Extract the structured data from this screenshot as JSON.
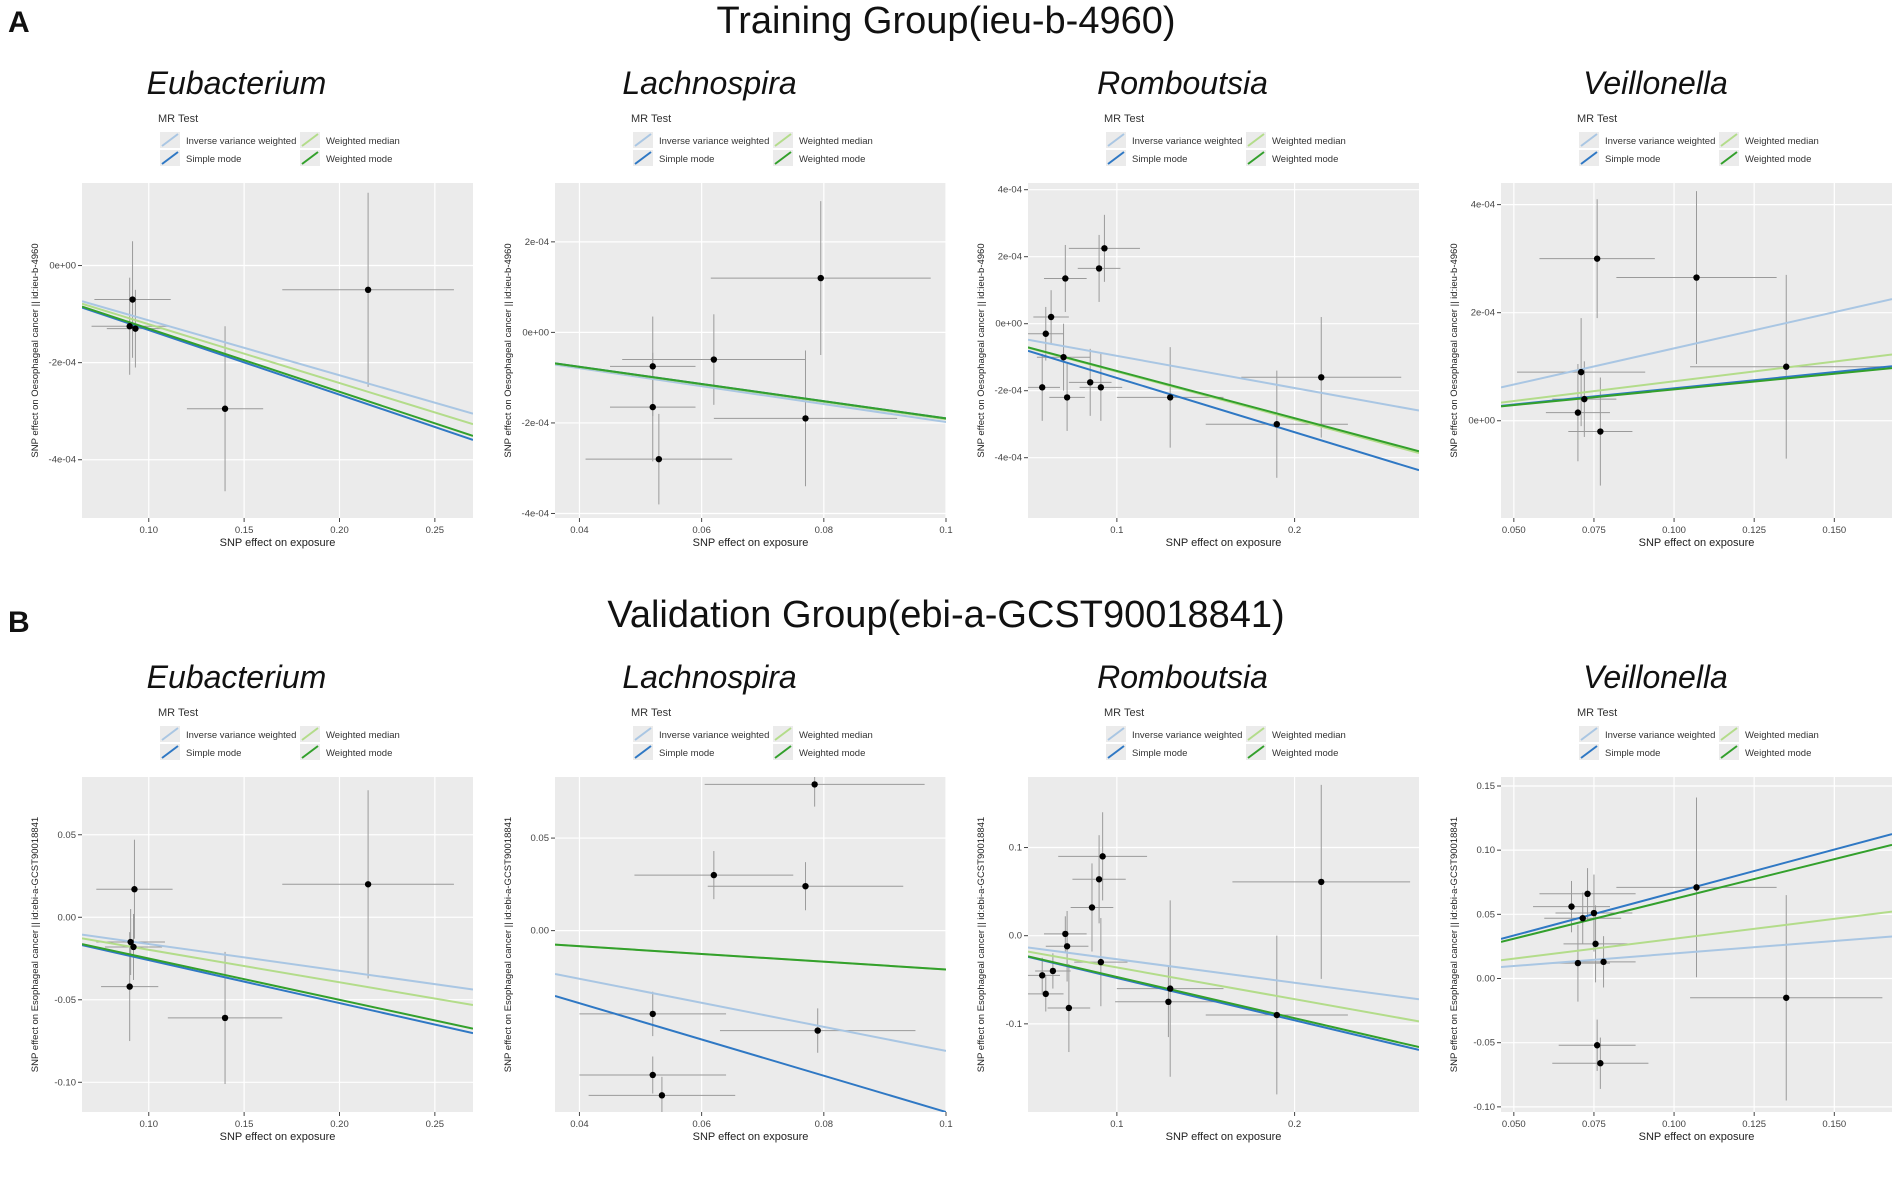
{
  "figure": {
    "panel_a_letter": "A",
    "panel_b_letter": "B",
    "training_title": "Training Group(ieu-b-4960)",
    "validation_title": "Validation Group(ebi-a-GCST90018841)"
  },
  "legend": {
    "title": "MR Test",
    "entries": [
      {
        "name": "Inverse variance weighted",
        "color": "#a9c6e3"
      },
      {
        "name": "Weighted median",
        "color": "#b3dc8a"
      },
      {
        "name": "Simple mode",
        "color": "#2f78c4"
      },
      {
        "name": "Weighted mode",
        "color": "#33a02c"
      }
    ]
  },
  "chart_data": [
    {
      "type": "scatter",
      "group": "training",
      "title": "Eubacterium",
      "xlabel": "SNP effect on exposure",
      "ylabel": "SNP effect on Oesophageal cancer || id:ieu-b-4960",
      "xlim": [
        0.065,
        0.27
      ],
      "ylim": [
        -0.00052,
        0.00017
      ],
      "xticks": [
        0.1,
        0.15,
        0.2,
        0.25
      ],
      "xtick_labels": [
        "0.10",
        "0.15",
        "0.20",
        "0.25"
      ],
      "yticks": [
        0,
        -0.0002,
        -0.0004
      ],
      "ytick_labels": [
        "0e+00",
        "-2e-04",
        "-4e-04"
      ],
      "points": [
        {
          "x": 0.0915,
          "y": -7e-05,
          "xerr": 0.02,
          "yerr": 0.00012
        },
        {
          "x": 0.09,
          "y": -0.000125,
          "xerr": 0.02,
          "yerr": 0.0001
        },
        {
          "x": 0.093,
          "y": -0.00013,
          "xerr": 0.015,
          "yerr": 8e-05
        },
        {
          "x": 0.14,
          "y": -0.000295,
          "xerr": 0.02,
          "yerr": 0.00017
        },
        {
          "x": 0.215,
          "y": -5e-05,
          "xerr": 0.045,
          "yerr": 0.0002
        }
      ],
      "lines": [
        {
          "method": "Inverse variance weighted",
          "slope": -0.00113
        },
        {
          "method": "Weighted median",
          "slope": -0.00121
        },
        {
          "method": "Simple mode",
          "slope": -0.00133
        },
        {
          "method": "Weighted mode",
          "slope": -0.0013
        }
      ]
    },
    {
      "type": "scatter",
      "group": "training",
      "title": "Lachnospira",
      "xlabel": "SNP effect on exposure",
      "ylabel": "SNP effect on Oesophageal cancer || id:ieu-b-4960",
      "xlim": [
        0.036,
        0.1
      ],
      "ylim": [
        -0.00041,
        0.00033
      ],
      "xticks": [
        0.04,
        0.06,
        0.08,
        0.1
      ],
      "xtick_labels": [
        "0.04",
        "0.06",
        "0.08",
        "0.1"
      ],
      "yticks": [
        0.0002,
        0,
        -0.0002,
        -0.0004
      ],
      "ytick_labels": [
        "2e-04",
        "0e+00",
        "-2e-04",
        "-4e-04"
      ],
      "points": [
        {
          "x": 0.052,
          "y": -7.5e-05,
          "xerr": 0.007,
          "yerr": 0.00011
        },
        {
          "x": 0.052,
          "y": -0.000165,
          "xerr": 0.007,
          "yerr": 0.00012
        },
        {
          "x": 0.053,
          "y": -0.00028,
          "xerr": 0.012,
          "yerr": 0.0001
        },
        {
          "x": 0.062,
          "y": -6e-05,
          "xerr": 0.015,
          "yerr": 0.0001
        },
        {
          "x": 0.077,
          "y": -0.00019,
          "xerr": 0.015,
          "yerr": 0.00015
        },
        {
          "x": 0.0795,
          "y": 0.00012,
          "xerr": 0.018,
          "yerr": 0.00017
        }
      ],
      "lines": [
        {
          "method": "Inverse variance weighted",
          "slope": -0.00198
        },
        {
          "method": "Weighted median",
          "slope": -0.00192
        },
        {
          "method": "Simple mode",
          "slope": -0.0019
        },
        {
          "method": "Weighted mode",
          "slope": -0.0019
        }
      ]
    },
    {
      "type": "scatter",
      "group": "training",
      "title": "Romboutsia",
      "xlabel": "SNP effect on exposure",
      "ylabel": "SNP effect on Oesophageal cancer || id:ieu-b-4960",
      "xlim": [
        0.05,
        0.27
      ],
      "ylim": [
        -0.00058,
        0.00042
      ],
      "xticks": [
        0.1,
        0.2
      ],
      "xtick_labels": [
        "0.1",
        "0.2"
      ],
      "yticks": [
        0.0004,
        0.0002,
        0,
        -0.0002,
        -0.0004
      ],
      "ytick_labels": [
        "4e-04",
        "2e-04",
        "0e+00",
        "-2e-04",
        "-4e-04"
      ],
      "points": [
        {
          "x": 0.058,
          "y": -0.00019,
          "xerr": 0.01,
          "yerr": 0.0001
        },
        {
          "x": 0.06,
          "y": -3e-05,
          "xerr": 0.01,
          "yerr": 8e-05
        },
        {
          "x": 0.063,
          "y": 2e-05,
          "xerr": 0.01,
          "yerr": 8e-05
        },
        {
          "x": 0.07,
          "y": -0.0001,
          "xerr": 0.015,
          "yerr": 0.0001
        },
        {
          "x": 0.071,
          "y": 0.000135,
          "xerr": 0.012,
          "yerr": 0.0001
        },
        {
          "x": 0.072,
          "y": -0.00022,
          "xerr": 0.01,
          "yerr": 0.0001
        },
        {
          "x": 0.085,
          "y": -0.000175,
          "xerr": 0.012,
          "yerr": 0.0001
        },
        {
          "x": 0.09,
          "y": 0.000165,
          "xerr": 0.012,
          "yerr": 0.0001
        },
        {
          "x": 0.091,
          "y": -0.00019,
          "xerr": 0.012,
          "yerr": 0.0001
        },
        {
          "x": 0.093,
          "y": 0.000225,
          "xerr": 0.02,
          "yerr": 0.0001
        },
        {
          "x": 0.13,
          "y": -0.00022,
          "xerr": 0.03,
          "yerr": 0.00015
        },
        {
          "x": 0.19,
          "y": -0.0003,
          "xerr": 0.04,
          "yerr": 0.00016
        },
        {
          "x": 0.215,
          "y": -0.00016,
          "xerr": 0.045,
          "yerr": 0.00018
        }
      ],
      "lines": [
        {
          "method": "Inverse variance weighted",
          "slope": -0.00096
        },
        {
          "method": "Weighted median",
          "slope": -0.00143
        },
        {
          "method": "Simple mode",
          "slope": -0.00162
        },
        {
          "method": "Weighted mode",
          "slope": -0.00141
        }
      ]
    },
    {
      "type": "scatter",
      "group": "training",
      "title": "Veillonella",
      "xlabel": "SNP effect on exposure",
      "ylabel": "SNP effect on Oesophageal cancer || id:ieu-b-4960",
      "xlim": [
        0.046,
        0.168
      ],
      "ylim": [
        -0.00018,
        0.00044
      ],
      "xticks": [
        0.05,
        0.075,
        0.1,
        0.125,
        0.15
      ],
      "xtick_labels": [
        "0.050",
        "0.075",
        "0.100",
        "0.125",
        "0.150"
      ],
      "yticks": [
        0.0004,
        0.0002,
        0
      ],
      "ytick_labels": [
        "4e-04",
        "2e-04",
        "0e+00"
      ],
      "points": [
        {
          "x": 0.07,
          "y": 1.5e-05,
          "xerr": 0.01,
          "yerr": 9e-05
        },
        {
          "x": 0.071,
          "y": 9e-05,
          "xerr": 0.02,
          "yerr": 0.0001
        },
        {
          "x": 0.072,
          "y": 4e-05,
          "xerr": 0.01,
          "yerr": 7e-05
        },
        {
          "x": 0.076,
          "y": 0.0003,
          "xerr": 0.018,
          "yerr": 0.00011
        },
        {
          "x": 0.077,
          "y": -2e-05,
          "xerr": 0.01,
          "yerr": 0.0001
        },
        {
          "x": 0.107,
          "y": 0.000265,
          "xerr": 0.025,
          "yerr": 0.00016
        },
        {
          "x": 0.135,
          "y": 0.0001,
          "xerr": 0.03,
          "yerr": 0.00017
        }
      ],
      "lines": [
        {
          "method": "Inverse variance weighted",
          "slope": 0.00134
        },
        {
          "method": "Weighted median",
          "slope": 0.00073
        },
        {
          "method": "Simple mode",
          "slope": 0.0006
        },
        {
          "method": "Weighted mode",
          "slope": 0.00058
        }
      ]
    },
    {
      "type": "scatter",
      "group": "validation",
      "title": "Eubacterium",
      "xlabel": "SNP effect on exposure",
      "ylabel": "SNP effect on Esophageal cancer || id:ebi-a-GCST90018841",
      "xlim": [
        0.065,
        0.27
      ],
      "ylim": [
        -0.118,
        0.085
      ],
      "xticks": [
        0.1,
        0.15,
        0.2,
        0.25
      ],
      "xtick_labels": [
        "0.10",
        "0.15",
        "0.20",
        "0.25"
      ],
      "yticks": [
        0.05,
        0,
        -0.05,
        -0.1
      ],
      "ytick_labels": [
        "0.05",
        "0.00",
        "-0.05",
        "-0.10"
      ],
      "points": [
        {
          "x": 0.09,
          "y": -0.042,
          "xerr": 0.015,
          "yerr": 0.033
        },
        {
          "x": 0.0905,
          "y": -0.015,
          "xerr": 0.018,
          "yerr": 0.02
        },
        {
          "x": 0.092,
          "y": -0.018,
          "xerr": 0.015,
          "yerr": 0.02
        },
        {
          "x": 0.0925,
          "y": 0.017,
          "xerr": 0.02,
          "yerr": 0.03
        },
        {
          "x": 0.14,
          "y": -0.061,
          "xerr": 0.03,
          "yerr": 0.04
        },
        {
          "x": 0.215,
          "y": 0.02,
          "xerr": 0.045,
          "yerr": 0.057
        }
      ],
      "lines": [
        {
          "method": "Inverse variance weighted",
          "slope": -0.162
        },
        {
          "method": "Weighted median",
          "slope": -0.197
        },
        {
          "method": "Simple mode",
          "slope": -0.26
        },
        {
          "method": "Weighted mode",
          "slope": -0.25
        }
      ]
    },
    {
      "type": "scatter",
      "group": "validation",
      "title": "Lachnospira",
      "xlabel": "SNP effect on exposure",
      "ylabel": "SNP effect on Esophageal cancer || id:ebi-a-GCST90018841",
      "xlim": [
        0.036,
        0.1
      ],
      "ylim": [
        -0.098,
        0.083
      ],
      "xticks": [
        0.04,
        0.06,
        0.08,
        0.1
      ],
      "xtick_labels": [
        "0.04",
        "0.06",
        "0.08",
        "0.1"
      ],
      "yticks": [
        0.05,
        0
      ],
      "ytick_labels": [
        "0.05",
        "0.00"
      ],
      "points": [
        {
          "x": 0.052,
          "y": -0.045,
          "xerr": 0.012,
          "yerr": 0.012
        },
        {
          "x": 0.052,
          "y": -0.078,
          "xerr": 0.012,
          "yerr": 0.01
        },
        {
          "x": 0.0535,
          "y": -0.089,
          "xerr": 0.012,
          "yerr": 0.01
        },
        {
          "x": 0.062,
          "y": 0.03,
          "xerr": 0.013,
          "yerr": 0.013
        },
        {
          "x": 0.077,
          "y": 0.024,
          "xerr": 0.016,
          "yerr": 0.013
        },
        {
          "x": 0.079,
          "y": -0.054,
          "xerr": 0.016,
          "yerr": 0.012
        },
        {
          "x": 0.0785,
          "y": 0.079,
          "xerr": 0.018,
          "yerr": 0.012
        }
      ],
      "lines": [
        {
          "method": "Inverse variance weighted",
          "slope": -0.65
        },
        {
          "method": "Weighted median",
          "slope": -0.21
        },
        {
          "method": "Simple mode",
          "slope": -0.98
        },
        {
          "method": "Weighted mode",
          "slope": -0.21
        }
      ]
    },
    {
      "type": "scatter",
      "group": "validation",
      "title": "Romboutsia",
      "xlabel": "SNP effect on exposure",
      "ylabel": "SNP effect on Esophageal cancer || id:ebi-a-GCST90018841",
      "xlim": [
        0.05,
        0.27
      ],
      "ylim": [
        -0.2,
        0.18
      ],
      "xticks": [
        0.1,
        0.2
      ],
      "xtick_labels": [
        "0.1",
        "0.2"
      ],
      "yticks": [
        0.1,
        0,
        -0.1
      ],
      "ytick_labels": [
        "0.1",
        "0.0",
        "-0.1"
      ],
      "points": [
        {
          "x": 0.058,
          "y": -0.045,
          "xerr": 0.01,
          "yerr": 0.02
        },
        {
          "x": 0.06,
          "y": -0.066,
          "xerr": 0.01,
          "yerr": 0.02
        },
        {
          "x": 0.064,
          "y": -0.04,
          "xerr": 0.01,
          "yerr": 0.02
        },
        {
          "x": 0.071,
          "y": 0.002,
          "xerr": 0.012,
          "yerr": 0.02
        },
        {
          "x": 0.072,
          "y": -0.012,
          "xerr": 0.012,
          "yerr": 0.04
        },
        {
          "x": 0.073,
          "y": -0.082,
          "xerr": 0.012,
          "yerr": 0.05
        },
        {
          "x": 0.086,
          "y": 0.032,
          "xerr": 0.012,
          "yerr": 0.05
        },
        {
          "x": 0.09,
          "y": 0.064,
          "xerr": 0.015,
          "yerr": 0.05
        },
        {
          "x": 0.091,
          "y": -0.03,
          "xerr": 0.015,
          "yerr": 0.05
        },
        {
          "x": 0.092,
          "y": 0.09,
          "xerr": 0.025,
          "yerr": 0.05
        },
        {
          "x": 0.13,
          "y": -0.06,
          "xerr": 0.03,
          "yerr": 0.1
        },
        {
          "x": 0.129,
          "y": -0.075,
          "xerr": 0.03,
          "yerr": 0.04
        },
        {
          "x": 0.19,
          "y": -0.09,
          "xerr": 0.04,
          "yerr": 0.09
        },
        {
          "x": 0.215,
          "y": 0.061,
          "xerr": 0.05,
          "yerr": 0.11
        }
      ],
      "lines": [
        {
          "method": "Inverse variance weighted",
          "slope": -0.267
        },
        {
          "method": "Weighted median",
          "slope": -0.36
        },
        {
          "method": "Simple mode",
          "slope": -0.48
        },
        {
          "method": "Weighted mode",
          "slope": -0.468
        }
      ]
    },
    {
      "type": "scatter",
      "group": "validation",
      "title": "Veillonella",
      "xlabel": "SNP effect on exposure",
      "ylabel": "SNP effect on Esophageal cancer || id:ebi-a-GCST90018841",
      "xlim": [
        0.046,
        0.168
      ],
      "ylim": [
        -0.104,
        0.157
      ],
      "xticks": [
        0.05,
        0.075,
        0.1,
        0.125,
        0.15
      ],
      "xtick_labels": [
        "0.050",
        "0.075",
        "0.100",
        "0.125",
        "0.150"
      ],
      "yticks": [
        0.15,
        0.1,
        0.05,
        0,
        -0.05,
        -0.1
      ],
      "ytick_labels": [
        "0.15",
        "0.10",
        "0.05",
        "0.00",
        "-0.05",
        "-0.10"
      ],
      "points": [
        {
          "x": 0.068,
          "y": 0.056,
          "xerr": 0.012,
          "yerr": 0.02
        },
        {
          "x": 0.07,
          "y": 0.012,
          "xerr": 0.01,
          "yerr": 0.03
        },
        {
          "x": 0.0715,
          "y": 0.047,
          "xerr": 0.012,
          "yerr": 0.02
        },
        {
          "x": 0.073,
          "y": 0.066,
          "xerr": 0.015,
          "yerr": 0.02
        },
        {
          "x": 0.075,
          "y": 0.051,
          "xerr": 0.012,
          "yerr": 0.03
        },
        {
          "x": 0.0755,
          "y": 0.027,
          "xerr": 0.01,
          "yerr": 0.03
        },
        {
          "x": 0.076,
          "y": -0.052,
          "xerr": 0.012,
          "yerr": 0.02
        },
        {
          "x": 0.077,
          "y": -0.066,
          "xerr": 0.015,
          "yerr": 0.02
        },
        {
          "x": 0.078,
          "y": 0.013,
          "xerr": 0.01,
          "yerr": 0.02
        },
        {
          "x": 0.107,
          "y": 0.071,
          "xerr": 0.025,
          "yerr": 0.07
        },
        {
          "x": 0.135,
          "y": -0.015,
          "xerr": 0.03,
          "yerr": 0.08
        }
      ],
      "lines": [
        {
          "method": "Inverse variance weighted",
          "slope": 0.195
        },
        {
          "method": "Weighted median",
          "slope": 0.31
        },
        {
          "method": "Simple mode",
          "slope": 0.67
        },
        {
          "method": "Weighted mode",
          "slope": 0.62
        }
      ]
    }
  ]
}
